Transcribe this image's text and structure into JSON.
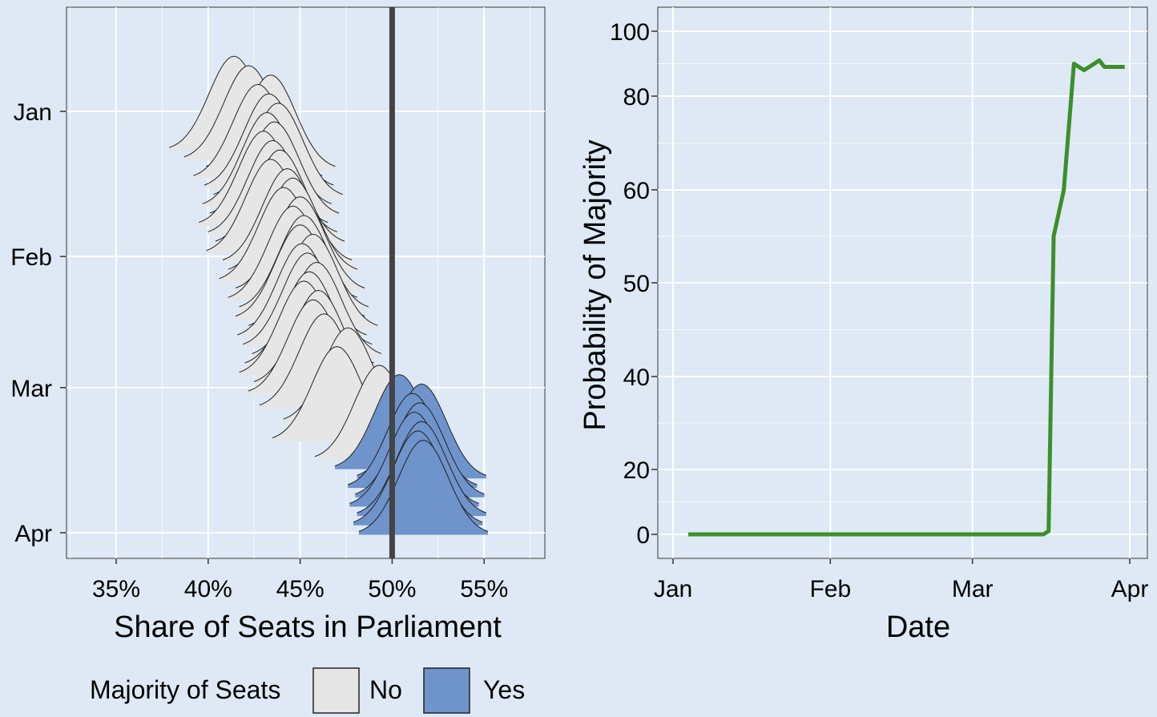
{
  "chart_data": [
    {
      "type": "ridgeline",
      "xlabel": "Share of Seats in Parliament",
      "ylabel": "",
      "x_ticks": [
        "35%",
        "40%",
        "45%",
        "50%",
        "55%"
      ],
      "x_tick_values": [
        35,
        40,
        45,
        50,
        55
      ],
      "xlim": [
        32.3,
        58.3
      ],
      "y_ticks": [
        "Jan",
        "Feb",
        "Mar",
        "Apr"
      ],
      "y_tick_values": [
        1,
        32,
        60,
        91
      ],
      "y_tick_units": "day of year",
      "reference_line": 50,
      "legend": {
        "title": "Majority of Seats",
        "position": "bottom",
        "entries": [
          {
            "label": "No",
            "color": "#e6e6e6"
          },
          {
            "label": "Yes",
            "color": "#6f93cb"
          }
        ]
      },
      "series_by_date": [
        {
          "date": "Jan 06",
          "peak_share": 41.4,
          "majority": "No"
        },
        {
          "date": "Jan 08",
          "peak_share": 42.2,
          "majority": "No"
        },
        {
          "date": "Jan 10",
          "peak_share": 43.4,
          "majority": "No"
        },
        {
          "date": "Jan 12",
          "peak_share": 42.7,
          "majority": "No"
        },
        {
          "date": "Jan 14",
          "peak_share": 43.3,
          "majority": "No"
        },
        {
          "date": "Jan 16",
          "peak_share": 43.8,
          "majority": "No"
        },
        {
          "date": "Jan 18",
          "peak_share": 43.2,
          "majority": "No"
        },
        {
          "date": "Jan 20",
          "peak_share": 43.6,
          "majority": "No"
        },
        {
          "date": "Jan 22",
          "peak_share": 43.0,
          "majority": "No"
        },
        {
          "date": "Jan 24",
          "peak_share": 43.5,
          "majority": "No"
        },
        {
          "date": "Jan 26",
          "peak_share": 43.9,
          "majority": "No"
        },
        {
          "date": "Jan 28",
          "peak_share": 43.4,
          "majority": "No"
        },
        {
          "date": "Jan 30",
          "peak_share": 44.3,
          "majority": "No"
        },
        {
          "date": "Feb 01",
          "peak_share": 44.6,
          "majority": "No"
        },
        {
          "date": "Feb 03",
          "peak_share": 44.1,
          "majority": "No"
        },
        {
          "date": "Feb 05",
          "peak_share": 45.0,
          "majority": "No"
        },
        {
          "date": "Feb 07",
          "peak_share": 44.6,
          "majority": "No"
        },
        {
          "date": "Feb 09",
          "peak_share": 45.2,
          "majority": "No"
        },
        {
          "date": "Feb 11",
          "peak_share": 45.0,
          "majority": "No"
        },
        {
          "date": "Feb 13",
          "peak_share": 45.7,
          "majority": "No"
        },
        {
          "date": "Feb 15",
          "peak_share": 45.1,
          "majority": "No"
        },
        {
          "date": "Feb 17",
          "peak_share": 45.4,
          "majority": "No"
        },
        {
          "date": "Feb 19",
          "peak_share": 45.9,
          "majority": "No"
        },
        {
          "date": "Feb 21",
          "peak_share": 45.5,
          "majority": "No"
        },
        {
          "date": "Feb 23",
          "peak_share": 45.2,
          "majority": "No"
        },
        {
          "date": "Feb 25",
          "peak_share": 46.0,
          "majority": "No"
        },
        {
          "date": "Feb 27",
          "peak_share": 45.7,
          "majority": "No"
        },
        {
          "date": "Mar 02",
          "peak_share": 46.3,
          "majority": "No"
        },
        {
          "date": "Mar 05",
          "peak_share": 47.6,
          "majority": "No"
        },
        {
          "date": "Mar 09",
          "peak_share": 47.0,
          "majority": "No"
        },
        {
          "date": "Mar 13",
          "peak_share": 49.3,
          "majority": "No"
        },
        {
          "date": "Mar 15",
          "peak_share": 50.4,
          "majority": "Yes"
        },
        {
          "date": "Mar 17",
          "peak_share": 51.6,
          "majority": "Yes"
        },
        {
          "date": "Mar 19",
          "peak_share": 51.1,
          "majority": "Yes"
        },
        {
          "date": "Mar 21",
          "peak_share": 51.5,
          "majority": "Yes"
        },
        {
          "date": "Mar 23",
          "peak_share": 51.2,
          "majority": "Yes"
        },
        {
          "date": "Mar 25",
          "peak_share": 51.6,
          "majority": "Yes"
        },
        {
          "date": "Mar 27",
          "peak_share": 51.4,
          "majority": "Yes"
        },
        {
          "date": "Mar 29",
          "peak_share": 51.7,
          "majority": "Yes"
        }
      ]
    },
    {
      "type": "line",
      "xlabel": "Date",
      "ylabel": "Probability of Majority",
      "x_ticks": [
        "Jan",
        "Feb",
        "Mar",
        "Apr"
      ],
      "x_tick_values": [
        1,
        32,
        60,
        91
      ],
      "x_units": "day of year",
      "y_ticks": [
        "0",
        "20",
        "40",
        "50",
        "60",
        "80",
        "100"
      ],
      "y_tick_values": [
        0,
        20,
        40,
        50,
        60,
        80,
        100
      ],
      "ylim": [
        0,
        100
      ],
      "y_scale": "nonlinear (50 placed at midpoint; 0, 100 near ends)",
      "color": "#3d8f2a",
      "series": [
        {
          "x": [
            4,
            10,
            20,
            30,
            40,
            50,
            60,
            70,
            74,
            75,
            76,
            78,
            80,
            82,
            84,
            85,
            86,
            88,
            89,
            90
          ],
          "y": [
            0,
            0,
            0,
            0,
            0,
            0,
            0,
            0,
            0,
            1,
            55,
            60,
            90,
            88,
            90,
            91,
            89,
            89,
            89,
            89
          ]
        }
      ]
    }
  ]
}
